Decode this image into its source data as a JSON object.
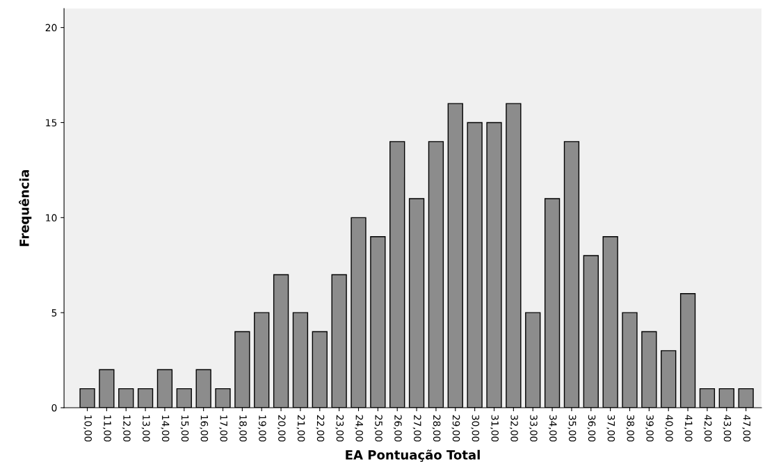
{
  "chart_data": {
    "type": "bar",
    "xlabel": "EA Pontuação Total",
    "ylabel": "Frequência",
    "categories": [
      "10,00",
      "11,00",
      "12,00",
      "13,00",
      "14,00",
      "15,00",
      "16,00",
      "17,00",
      "18,00",
      "19,00",
      "20,00",
      "21,00",
      "22,00",
      "23,00",
      "24,00",
      "25,00",
      "26,00",
      "27,00",
      "28,00",
      "29,00",
      "30,00",
      "31,00",
      "32,00",
      "33,00",
      "34,00",
      "35,00",
      "36,00",
      "37,00",
      "38,00",
      "39,00",
      "40,00",
      "41,00",
      "42,00",
      "43,00",
      "47,00"
    ],
    "values": [
      1,
      2,
      1,
      1,
      2,
      1,
      2,
      1,
      4,
      5,
      7,
      5,
      4,
      7,
      10,
      9,
      14,
      11,
      14,
      16,
      15,
      15,
      16,
      5,
      11,
      14,
      8,
      9,
      5,
      4,
      3,
      6,
      1,
      1,
      1
    ],
    "color": "#8c8c8c",
    "ylim": [
      0,
      21
    ],
    "yticks": [
      0,
      5,
      10,
      15,
      20
    ],
    "grid": false
  }
}
